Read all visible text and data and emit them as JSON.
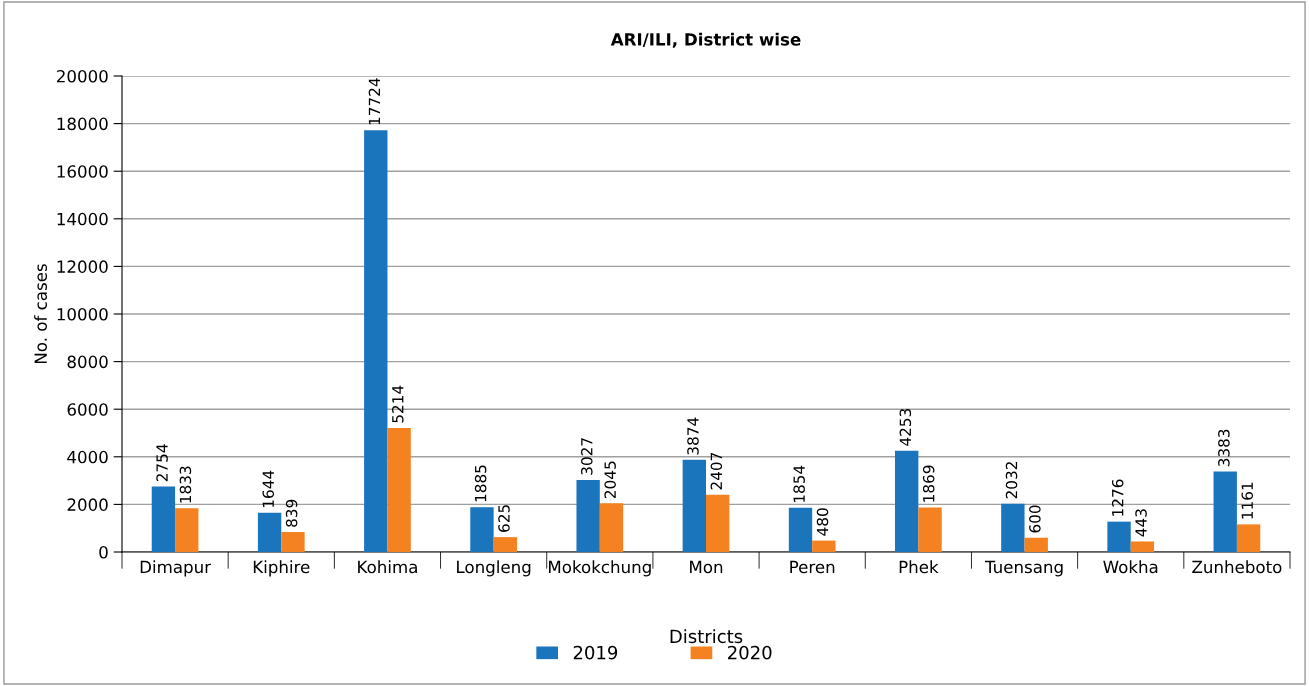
{
  "chart_data": {
    "type": "bar",
    "title": "ARI/ILI, District wise",
    "xlabel": "Districts",
    "ylabel": "No. of cases",
    "categories": [
      "Dimapur",
      "Kiphire",
      "Kohima",
      "Longleng",
      "Mokokchung",
      "Mon",
      "Peren",
      "Phek",
      "Tuensang",
      "Wokha",
      "Zunheboto"
    ],
    "series": [
      {
        "name": "2019",
        "color": "#1b75bc",
        "values": [
          2754,
          1644,
          17724,
          1885,
          3027,
          3874,
          1854,
          4253,
          2032,
          1276,
          3383
        ]
      },
      {
        "name": "2020",
        "color": "#f58220",
        "values": [
          1833,
          839,
          5214,
          625,
          2045,
          2407,
          480,
          1869,
          600,
          443,
          1161
        ]
      }
    ],
    "ylim": [
      0,
      20000
    ],
    "yticks": [
      0,
      2000,
      4000,
      6000,
      8000,
      10000,
      12000,
      14000,
      16000,
      18000,
      20000
    ],
    "grid": "y",
    "legend": "bottom",
    "data_labels": true
  }
}
